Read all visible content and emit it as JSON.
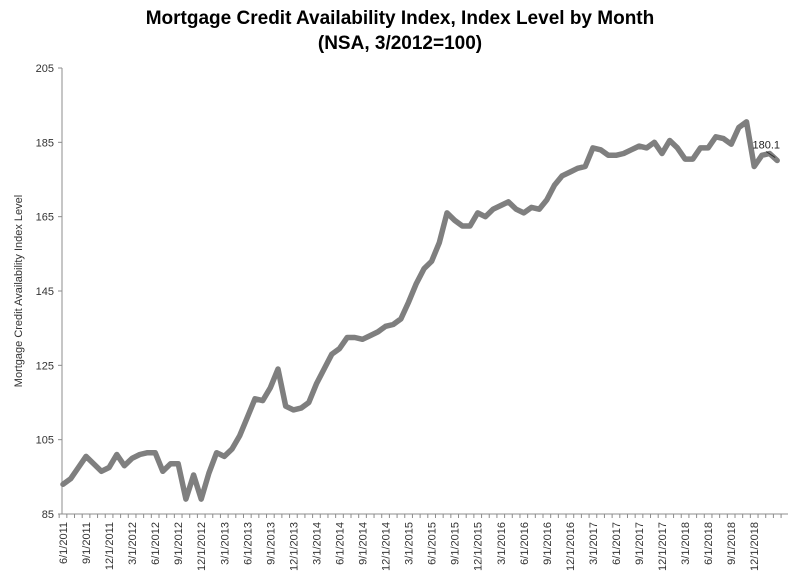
{
  "chart_data": {
    "type": "line",
    "title": "Mortgage Credit Availability Index, Index Level by Month",
    "subtitle": "(NSA, 3/2012=100)",
    "ylabel": "Mortgage Credit Availability Index Level",
    "xlabel": "",
    "ylim": [
      85,
      205
    ],
    "yticks": [
      85,
      105,
      125,
      145,
      165,
      185,
      205
    ],
    "x_tick_labels": [
      "6/1/2011",
      "9/1/2011",
      "12/1/2011",
      "3/1/2012",
      "6/1/2012",
      "9/1/2012",
      "12/1/2012",
      "3/1/2013",
      "6/1/2013",
      "9/1/2013",
      "12/1/2013",
      "3/1/2014",
      "6/1/2014",
      "9/1/2014",
      "12/1/2014",
      "3/1/2015",
      "6/1/2015",
      "9/1/2015",
      "12/1/2015",
      "3/1/2016",
      "6/1/2016",
      "9/1/2016",
      "12/1/2016",
      "3/1/2017",
      "6/1/2017",
      "9/1/2017",
      "12/1/2017",
      "3/1/2018",
      "6/1/2018",
      "9/1/2018",
      "12/1/2018"
    ],
    "start_month": "6/1/2011",
    "series": [
      {
        "name": "",
        "color": "#7f7f7f",
        "values": [
          93.0,
          94.5,
          97.5,
          100.5,
          98.5,
          96.5,
          97.5,
          101.0,
          98.0,
          100.0,
          101.0,
          101.5,
          101.5,
          96.5,
          98.5,
          98.5,
          89.0,
          95.5,
          89.0,
          96.0,
          101.5,
          100.5,
          102.5,
          106.0,
          111.0,
          116.0,
          115.5,
          119.0,
          124.0,
          114.0,
          113.0,
          113.5,
          115.0,
          120.0,
          124.0,
          128.0,
          129.5,
          132.5,
          132.5,
          132.0,
          133.0,
          134.0,
          135.5,
          136.0,
          137.5,
          142.0,
          147.0,
          151.0,
          153.0,
          158.0,
          166.0,
          164.0,
          162.5,
          162.5,
          166.0,
          165.0,
          167.0,
          168.0,
          169.0,
          167.0,
          166.0,
          167.5,
          167.0,
          169.5,
          173.5,
          176.0,
          177.0,
          178.0,
          178.5,
          183.5,
          183.0,
          181.5,
          181.5,
          182.0,
          183.0,
          184.0,
          183.5,
          185.0,
          182.0,
          185.5,
          183.5,
          180.5,
          180.5,
          183.5,
          183.5,
          186.5,
          186.0,
          184.5,
          189.0,
          190.5,
          178.5,
          181.5,
          182.0,
          180.1
        ]
      }
    ],
    "annotations": [
      {
        "text": "180.1",
        "target_index": 93
      }
    ],
    "grid": false,
    "legend": "none"
  }
}
